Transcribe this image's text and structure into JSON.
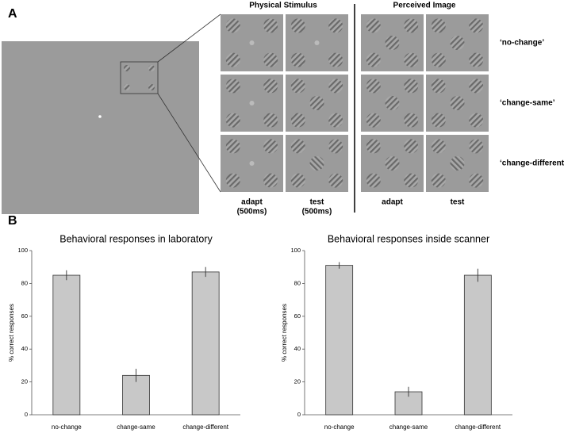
{
  "panel_labels": [
    "A",
    "B"
  ],
  "panel_a": {
    "column_groups": [
      "Physical Stimulus",
      "Perceived Image"
    ],
    "rows": [
      "‘no-change’",
      "‘change-same’",
      "‘change-different’"
    ],
    "columns": [
      {
        "label": "adapt",
        "sublabel": "(500ms)"
      },
      {
        "label": "test",
        "sublabel": "(500ms)"
      },
      {
        "label": "adapt"
      },
      {
        "label": "test"
      }
    ]
  },
  "chart_data": [
    {
      "type": "bar",
      "title": "Behavioral responses in laboratory",
      "y_label": "% correct responses",
      "categories": [
        "no-change",
        "change-same",
        "change-different"
      ],
      "values": [
        85,
        24,
        87
      ],
      "errors": [
        3,
        4,
        3
      ],
      "color": "#c8c8c8",
      "ylim": [
        0,
        100
      ],
      "yticks": [
        0,
        20,
        40,
        60,
        80,
        100
      ]
    },
    {
      "type": "bar",
      "title": "Behavioral responses inside scanner",
      "y_label": "% correct responses",
      "categories": [
        "no-change",
        "change-same",
        "change-different"
      ],
      "values": [
        91,
        14,
        85
      ],
      "errors": [
        2,
        3,
        4
      ],
      "color": "#c8c8c8",
      "ylim": [
        0,
        100
      ],
      "yticks": [
        0,
        20,
        40,
        60,
        80,
        100
      ]
    }
  ]
}
